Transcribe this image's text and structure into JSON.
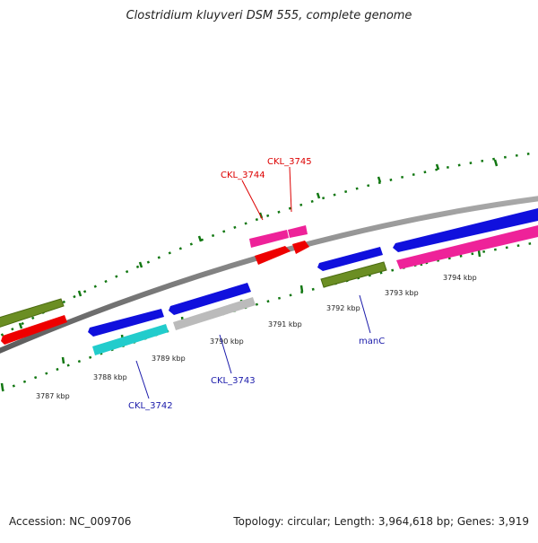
{
  "title": "Clostridium kluyveri DSM 555, complete genome",
  "footer": {
    "accession": "Accession: NC_009706",
    "stats": "Topology: circular; Length: 3,964,618 bp; Genes: 3,919"
  },
  "ticks": [
    "3787 kbp",
    "3788 kbp",
    "3789 kbp",
    "3790 kbp",
    "3791 kbp",
    "3792 kbp",
    "3793 kbp",
    "3794 kbp"
  ],
  "gene_labels": [
    {
      "text": "CKL_3744",
      "color": "#dd0000"
    },
    {
      "text": "CKL_3745",
      "color": "#dd0000"
    },
    {
      "text": "CKL_3742",
      "color": "#1a1aaa"
    },
    {
      "text": "CKL_3743",
      "color": "#1a1aaa"
    },
    {
      "text": "manC",
      "color": "#1a1aaa"
    }
  ],
  "colors": {
    "backbone": "#808080",
    "blue": "#1010dd",
    "green": "#6b8e23",
    "red": "#ee0000",
    "cyan": "#22cccc",
    "gray": "#bbbbbb",
    "magenta": "#ee2299",
    "tick": "#117711"
  }
}
